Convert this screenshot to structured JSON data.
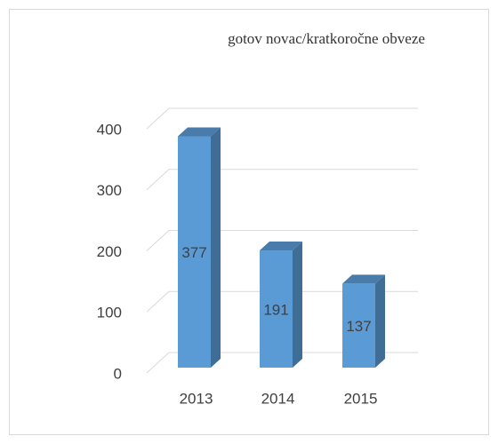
{
  "chart_data": {
    "type": "bar",
    "title": "gotov novac/kratkoročne obveze",
    "categories": [
      "2013",
      "2014",
      "2015"
    ],
    "values": [
      377,
      191,
      137
    ],
    "color": "#5b9bd5",
    "ylim": [
      0,
      400
    ],
    "yticks": [
      0,
      100,
      200,
      300,
      400
    ],
    "grid": true
  }
}
